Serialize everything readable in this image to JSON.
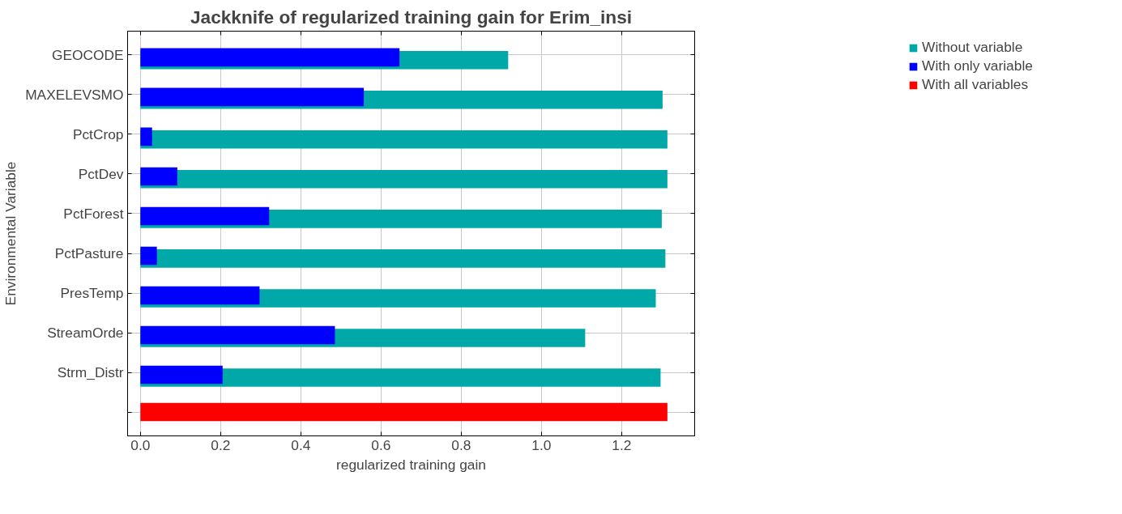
{
  "chart_data": {
    "type": "bar",
    "orientation": "horizontal",
    "title": "Jackknife of regularized training gain for Erim_insi",
    "xlabel": "regularized training gain",
    "ylabel": "Environmental Variable",
    "categories": [
      "GEOCODE",
      "MAXELEVSMO",
      "PctCrop",
      "PctDev",
      "PctForest",
      "PctPasture",
      "PresTemp",
      "StreamOrde",
      "Strm_Distr",
      null
    ],
    "series": [
      {
        "name": "Without variable",
        "color": "#00a8a8",
        "values": [
          0.917,
          1.302,
          1.314,
          1.314,
          1.3,
          1.309,
          1.285,
          1.109,
          1.297,
          null
        ]
      },
      {
        "name": "With only variable",
        "color": "#0000ff",
        "values": [
          0.646,
          0.557,
          0.029,
          0.092,
          0.321,
          0.041,
          0.297,
          0.485,
          0.205,
          null
        ]
      },
      {
        "name": "With all variables",
        "color": "#ff0000",
        "values": [
          null,
          null,
          null,
          null,
          null,
          null,
          null,
          null,
          null,
          1.314
        ]
      }
    ],
    "xlim": [
      -0.032,
      1.382
    ],
    "xticks": [
      {
        "value": 0,
        "label": "0.0"
      },
      0.2,
      0.4,
      0.6,
      0.8,
      {
        "value": 1,
        "label": "1.0"
      },
      1.2
    ],
    "grid": true,
    "legend": "top right"
  }
}
